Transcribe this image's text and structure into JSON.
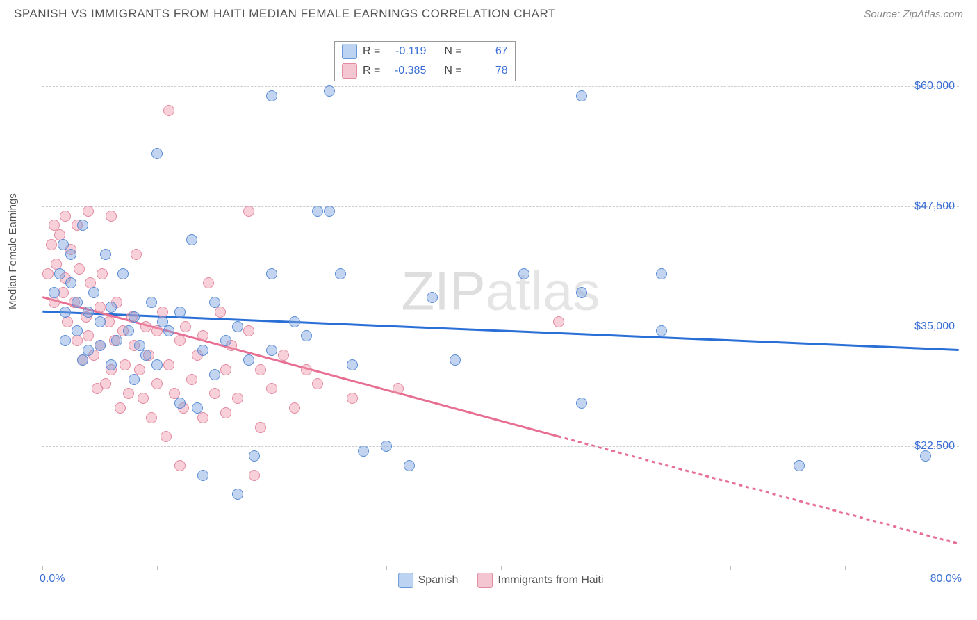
{
  "meta": {
    "title": "SPANISH VS IMMIGRANTS FROM HAITI MEDIAN FEMALE EARNINGS CORRELATION CHART",
    "source_prefix": "Source: ",
    "source_name": "ZipAtlas.com",
    "watermark_bold": "ZIP",
    "watermark_light": "atlas"
  },
  "axes": {
    "ylabel": "Median Female Earnings",
    "xmin_label": "0.0%",
    "xmax_label": "80.0%",
    "xlim": [
      0,
      80
    ],
    "ylim": [
      10000,
      65000
    ],
    "yticks": [
      {
        "value": 22500,
        "label": "$22,500"
      },
      {
        "value": 35000,
        "label": "$35,000"
      },
      {
        "value": 47500,
        "label": "$47,500"
      },
      {
        "value": 60000,
        "label": "$60,000"
      }
    ],
    "xtick_values": [
      0,
      10,
      20,
      30,
      40,
      50,
      60,
      70,
      80
    ],
    "grid_color": "#cccccc",
    "axis_color": "#bbbbbb",
    "tick_label_color": "#3b6fd6",
    "background_color": "#ffffff"
  },
  "series": {
    "spanish": {
      "label": "Spanish",
      "color_fill": "rgba(120,160,220,0.45)",
      "color_stroke": "#5a8cd6",
      "line_color": "#2a6fd6",
      "swatch_bg": "#bcd3f2",
      "swatch_border": "#6a98da",
      "R": "-0.119",
      "N": "67",
      "regression": {
        "x1": 0,
        "y1": 36500,
        "x2": 80,
        "y2": 32500
      },
      "points": [
        {
          "x": 1,
          "y": 38500
        },
        {
          "x": 1.5,
          "y": 40500
        },
        {
          "x": 1.8,
          "y": 43500
        },
        {
          "x": 2,
          "y": 36500
        },
        {
          "x": 2,
          "y": 33500
        },
        {
          "x": 2.5,
          "y": 42500
        },
        {
          "x": 2.5,
          "y": 39500
        },
        {
          "x": 3,
          "y": 34500
        },
        {
          "x": 3,
          "y": 37500
        },
        {
          "x": 3.5,
          "y": 31500
        },
        {
          "x": 3.5,
          "y": 45500
        },
        {
          "x": 4,
          "y": 36500
        },
        {
          "x": 4,
          "y": 32500
        },
        {
          "x": 4.5,
          "y": 38500
        },
        {
          "x": 5,
          "y": 33000
        },
        {
          "x": 5,
          "y": 35500
        },
        {
          "x": 5.5,
          "y": 42500
        },
        {
          "x": 6,
          "y": 37000
        },
        {
          "x": 6,
          "y": 31000
        },
        {
          "x": 6.5,
          "y": 33500
        },
        {
          "x": 7,
          "y": 40500
        },
        {
          "x": 7.5,
          "y": 34500
        },
        {
          "x": 8,
          "y": 36000
        },
        {
          "x": 8,
          "y": 29500
        },
        {
          "x": 8.5,
          "y": 33000
        },
        {
          "x": 9,
          "y": 32000
        },
        {
          "x": 9.5,
          "y": 37500
        },
        {
          "x": 10,
          "y": 53000
        },
        {
          "x": 10,
          "y": 31000
        },
        {
          "x": 10.5,
          "y": 35500
        },
        {
          "x": 11,
          "y": 34500
        },
        {
          "x": 12,
          "y": 27000
        },
        {
          "x": 12,
          "y": 36500
        },
        {
          "x": 13,
          "y": 44000
        },
        {
          "x": 13.5,
          "y": 26500
        },
        {
          "x": 14,
          "y": 19500
        },
        {
          "x": 14,
          "y": 32500
        },
        {
          "x": 15,
          "y": 30000
        },
        {
          "x": 15,
          "y": 37500
        },
        {
          "x": 16,
          "y": 33500
        },
        {
          "x": 17,
          "y": 35000
        },
        {
          "x": 17,
          "y": 17500
        },
        {
          "x": 18,
          "y": 31500
        },
        {
          "x": 18.5,
          "y": 21500
        },
        {
          "x": 20,
          "y": 59000
        },
        {
          "x": 20,
          "y": 32500
        },
        {
          "x": 20,
          "y": 40500
        },
        {
          "x": 22,
          "y": 35500
        },
        {
          "x": 23,
          "y": 34000
        },
        {
          "x": 24,
          "y": 47000
        },
        {
          "x": 25,
          "y": 59500
        },
        {
          "x": 25,
          "y": 47000
        },
        {
          "x": 26,
          "y": 40500
        },
        {
          "x": 27,
          "y": 31000
        },
        {
          "x": 28,
          "y": 22000
        },
        {
          "x": 30,
          "y": 22500
        },
        {
          "x": 32,
          "y": 20500
        },
        {
          "x": 34,
          "y": 38000
        },
        {
          "x": 36,
          "y": 31500
        },
        {
          "x": 42,
          "y": 40500
        },
        {
          "x": 47,
          "y": 38500
        },
        {
          "x": 47,
          "y": 27000
        },
        {
          "x": 54,
          "y": 40500
        },
        {
          "x": 54,
          "y": 34500
        },
        {
          "x": 47,
          "y": 59000
        },
        {
          "x": 66,
          "y": 20500
        },
        {
          "x": 77,
          "y": 21500
        }
      ]
    },
    "haiti": {
      "label": "Immigrants from Haiti",
      "color_fill": "rgba(240,150,170,0.45)",
      "color_stroke": "#e38aa0",
      "line_color": "#e76f93",
      "swatch_bg": "#f4c6d2",
      "swatch_border": "#e38aa0",
      "R": "-0.385",
      "N": "78",
      "regression": {
        "x1": 0,
        "y1": 38000,
        "x2": 45,
        "y2": 23500
      },
      "regression_extend": {
        "x1": 45,
        "y1": 23500,
        "x2": 80,
        "y2": 12300
      },
      "points": [
        {
          "x": 0.5,
          "y": 40500
        },
        {
          "x": 0.8,
          "y": 43500
        },
        {
          "x": 1,
          "y": 45500
        },
        {
          "x": 1,
          "y": 37500
        },
        {
          "x": 1.2,
          "y": 41500
        },
        {
          "x": 1.5,
          "y": 44500
        },
        {
          "x": 1.8,
          "y": 38500
        },
        {
          "x": 2,
          "y": 40000
        },
        {
          "x": 2,
          "y": 46500
        },
        {
          "x": 2.2,
          "y": 35500
        },
        {
          "x": 2.5,
          "y": 43000
        },
        {
          "x": 2.8,
          "y": 37500
        },
        {
          "x": 3,
          "y": 33500
        },
        {
          "x": 3,
          "y": 45500
        },
        {
          "x": 3.2,
          "y": 41000
        },
        {
          "x": 3.5,
          "y": 31500
        },
        {
          "x": 3.8,
          "y": 36000
        },
        {
          "x": 4,
          "y": 47000
        },
        {
          "x": 4,
          "y": 34000
        },
        {
          "x": 4.2,
          "y": 39500
        },
        {
          "x": 4.5,
          "y": 32000
        },
        {
          "x": 4.8,
          "y": 28500
        },
        {
          "x": 5,
          "y": 37000
        },
        {
          "x": 5,
          "y": 33000
        },
        {
          "x": 5.2,
          "y": 40500
        },
        {
          "x": 5.5,
          "y": 29000
        },
        {
          "x": 5.8,
          "y": 35500
        },
        {
          "x": 6,
          "y": 46500
        },
        {
          "x": 6,
          "y": 30500
        },
        {
          "x": 6.3,
          "y": 33500
        },
        {
          "x": 6.5,
          "y": 37500
        },
        {
          "x": 6.8,
          "y": 26500
        },
        {
          "x": 7,
          "y": 34500
        },
        {
          "x": 7.2,
          "y": 31000
        },
        {
          "x": 7.5,
          "y": 28000
        },
        {
          "x": 7.8,
          "y": 36000
        },
        {
          "x": 8,
          "y": 33000
        },
        {
          "x": 8.2,
          "y": 42500
        },
        {
          "x": 8.5,
          "y": 30500
        },
        {
          "x": 8.8,
          "y": 27500
        },
        {
          "x": 9,
          "y": 35000
        },
        {
          "x": 9.3,
          "y": 32000
        },
        {
          "x": 9.5,
          "y": 25500
        },
        {
          "x": 10,
          "y": 34500
        },
        {
          "x": 10,
          "y": 29000
        },
        {
          "x": 10.5,
          "y": 36500
        },
        {
          "x": 10.8,
          "y": 23500
        },
        {
          "x": 11,
          "y": 31000
        },
        {
          "x": 11,
          "y": 57500
        },
        {
          "x": 11.5,
          "y": 28000
        },
        {
          "x": 12,
          "y": 33500
        },
        {
          "x": 12,
          "y": 20500
        },
        {
          "x": 12.3,
          "y": 26500
        },
        {
          "x": 12.5,
          "y": 35000
        },
        {
          "x": 13,
          "y": 29500
        },
        {
          "x": 13.5,
          "y": 32000
        },
        {
          "x": 14,
          "y": 25500
        },
        {
          "x": 14,
          "y": 34000
        },
        {
          "x": 14.5,
          "y": 39500
        },
        {
          "x": 15,
          "y": 28000
        },
        {
          "x": 15.5,
          "y": 36500
        },
        {
          "x": 16,
          "y": 30500
        },
        {
          "x": 16,
          "y": 26000
        },
        {
          "x": 16.5,
          "y": 33000
        },
        {
          "x": 17,
          "y": 27500
        },
        {
          "x": 18,
          "y": 34500
        },
        {
          "x": 18,
          "y": 47000
        },
        {
          "x": 18.5,
          "y": 19500
        },
        {
          "x": 19,
          "y": 30500
        },
        {
          "x": 19,
          "y": 24500
        },
        {
          "x": 20,
          "y": 28500
        },
        {
          "x": 21,
          "y": 32000
        },
        {
          "x": 22,
          "y": 26500
        },
        {
          "x": 23,
          "y": 30500
        },
        {
          "x": 24,
          "y": 29000
        },
        {
          "x": 27,
          "y": 27500
        },
        {
          "x": 31,
          "y": 28500
        },
        {
          "x": 45,
          "y": 35500
        }
      ]
    }
  },
  "legend_labels": {
    "R": "R =",
    "N": "N ="
  },
  "style": {
    "point_radius": 8,
    "point_stroke_width": 1.2,
    "line_width": 3,
    "dash_pattern": "5,5"
  }
}
